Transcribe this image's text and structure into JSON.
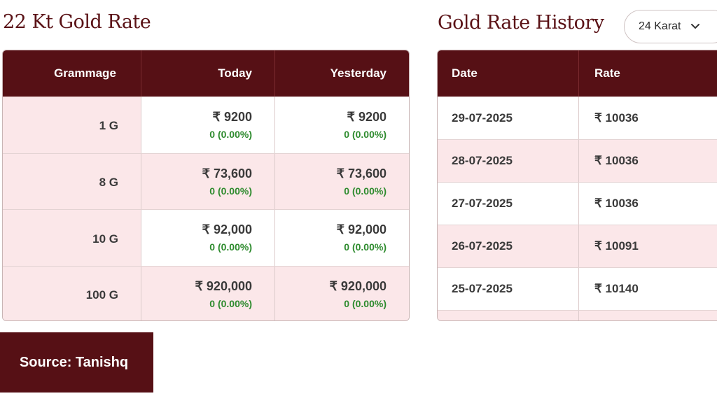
{
  "left_title": "22 Kt Gold Rate",
  "right_title": "Gold Rate History",
  "karat_select": {
    "selected": "24 Karat",
    "icon": "chevron-down-icon"
  },
  "rate_table": {
    "headers": {
      "grammage": "Grammage",
      "today": "Today",
      "yesterday": "Yesterday"
    },
    "rows": [
      {
        "grammage": "1 G",
        "today": "₹ 9200",
        "today_change": "0 (0.00%)",
        "yesterday": "₹ 9200",
        "yesterday_change": "0 (0.00%)"
      },
      {
        "grammage": "8 G",
        "today": "₹ 73,600",
        "today_change": "0 (0.00%)",
        "yesterday": "₹ 73,600",
        "yesterday_change": "0 (0.00%)"
      },
      {
        "grammage": "10 G",
        "today": "₹ 92,000",
        "today_change": "0 (0.00%)",
        "yesterday": "₹ 92,000",
        "yesterday_change": "0 (0.00%)"
      },
      {
        "grammage": "100 G",
        "today": "₹ 920,000",
        "today_change": "0 (0.00%)",
        "yesterday": "₹ 920,000",
        "yesterday_change": "0 (0.00%)"
      }
    ]
  },
  "history_table": {
    "headers": {
      "date": "Date",
      "rate": "Rate"
    },
    "rows": [
      {
        "date": "29-07-2025",
        "rate": "₹ 10036"
      },
      {
        "date": "28-07-2025",
        "rate": "₹ 10036"
      },
      {
        "date": "27-07-2025",
        "rate": "₹ 10036"
      },
      {
        "date": "26-07-2025",
        "rate": "₹ 10091"
      },
      {
        "date": "25-07-2025",
        "rate": "₹ 10140"
      }
    ]
  },
  "source_label": "Source: Tanishq",
  "colors": {
    "brand": "#561015",
    "row_tint": "#fbe7e9",
    "change_green": "#2e8b2e"
  }
}
